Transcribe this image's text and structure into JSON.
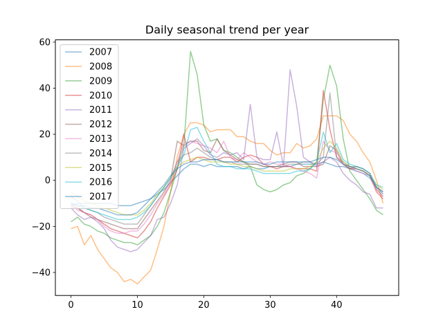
{
  "chart_data": {
    "type": "line",
    "title": "Daily seasonal trend per year",
    "xlabel": "",
    "ylabel": "",
    "xlim": [
      -2.35,
      49.35
    ],
    "ylim": [
      -50,
      61
    ],
    "xticks": [
      0,
      10,
      20,
      30,
      40
    ],
    "yticks": [
      -40,
      -20,
      0,
      20,
      40,
      60
    ],
    "grid": false,
    "legend_position": "top-left",
    "series": [
      {
        "name": "2007",
        "color": "#1f77b4",
        "values": [
          -11,
          -10,
          -10,
          -10,
          -10,
          -10,
          -10,
          -11,
          -11,
          -11,
          -10,
          -9,
          -8,
          -6,
          -4,
          -1,
          2,
          5,
          7,
          7,
          6,
          7,
          6,
          6,
          6,
          6,
          5,
          6,
          5,
          5,
          6,
          6,
          6,
          6,
          7,
          7,
          7,
          7,
          8,
          7,
          6,
          6,
          5,
          4,
          3,
          1,
          -3,
          -6
        ]
      },
      {
        "name": "2008",
        "color": "#ff7f0e",
        "values": [
          -21,
          -20,
          -28,
          -24,
          -30,
          -34,
          -38,
          -40,
          -44,
          -43,
          -45,
          -42,
          -39,
          -30,
          -20,
          -5,
          10,
          20,
          25,
          25,
          24,
          21,
          22,
          22,
          22,
          19,
          19,
          17,
          16,
          16,
          13,
          11,
          12,
          12,
          16,
          14,
          15,
          18,
          28,
          28,
          28,
          26,
          20,
          17,
          12,
          8,
          0,
          -10
        ]
      },
      {
        "name": "2009",
        "color": "#2ca02c",
        "values": [
          -18,
          -16,
          -19,
          -20,
          -22,
          -23,
          -25,
          -26,
          -27,
          -27,
          -28,
          -26,
          -24,
          -20,
          -14,
          -5,
          5,
          15,
          56,
          46,
          24,
          17,
          18,
          13,
          12,
          10,
          8,
          6,
          -2,
          -4,
          -5,
          -4,
          -2,
          -1,
          2,
          3,
          5,
          8,
          35,
          50,
          41,
          18,
          4,
          0,
          -4,
          -8,
          -13,
          -15
        ]
      },
      {
        "name": "2010",
        "color": "#d62728",
        "values": [
          -11,
          -12,
          -14,
          -15,
          -17,
          -19,
          -21,
          -22,
          -23,
          -24,
          -25,
          -22,
          -18,
          -12,
          -7,
          -2,
          5,
          20,
          8,
          10,
          10,
          9,
          9,
          10,
          10,
          8,
          10,
          11,
          10,
          7,
          6,
          5,
          6,
          6,
          5,
          5,
          5,
          4,
          39,
          22,
          10,
          7,
          5,
          5,
          4,
          2,
          -5,
          -8
        ]
      },
      {
        "name": "2011",
        "color": "#9467bd",
        "values": [
          -12,
          -15,
          -17,
          -16,
          -18,
          -21,
          -26,
          -29,
          -30,
          -31,
          -30,
          -27,
          -24,
          -17,
          -16,
          -10,
          -2,
          14,
          16,
          18,
          15,
          11,
          10,
          12,
          11,
          12,
          9,
          33,
          10,
          9,
          9,
          21,
          6,
          48,
          32,
          10,
          8,
          6,
          8,
          10,
          8,
          3,
          0,
          -2,
          -5,
          -6,
          -12,
          -12
        ]
      },
      {
        "name": "2012",
        "color": "#8c564b",
        "values": [
          -12,
          -12,
          -14,
          -16,
          -17,
          -18,
          -19,
          -20,
          -21,
          -21,
          -21,
          -17,
          -13,
          -9,
          -5,
          0,
          17,
          15,
          17,
          17,
          13,
          12,
          18,
          13,
          11,
          9,
          8,
          7,
          7,
          6,
          6,
          6,
          7,
          8,
          8,
          6,
          6,
          6,
          7,
          15,
          13,
          7,
          5,
          6,
          5,
          3,
          -4,
          -7
        ]
      },
      {
        "name": "2013",
        "color": "#e377c2",
        "values": [
          -10,
          -13,
          -14,
          -15,
          -17,
          -20,
          -22,
          -23,
          -23,
          -22,
          -22,
          -19,
          -15,
          -10,
          -6,
          -1,
          8,
          16,
          17,
          16,
          15,
          14,
          12,
          17,
          10,
          9,
          12,
          10,
          8,
          7,
          8,
          7,
          7,
          6,
          5,
          4,
          3,
          1,
          17,
          13,
          12,
          7,
          6,
          4,
          3,
          2,
          -4,
          -7
        ]
      },
      {
        "name": "2014",
        "color": "#7f7f7f",
        "values": [
          -7,
          -9,
          -12,
          -13,
          -14,
          -16,
          -17,
          -18,
          -19,
          -19,
          -19,
          -15,
          -11,
          -7,
          -3,
          1,
          8,
          11,
          12,
          14,
          12,
          10,
          9,
          8,
          8,
          7,
          7,
          7,
          7,
          6,
          6,
          6,
          6,
          7,
          7,
          8,
          8,
          7,
          10,
          38,
          10,
          8,
          6,
          6,
          5,
          3,
          -3,
          -5
        ]
      },
      {
        "name": "2015",
        "color": "#bcbd22",
        "values": [
          -5,
          -7,
          -9,
          -10,
          -11,
          -12,
          -13,
          -14,
          -15,
          -15,
          -15,
          -13,
          -10,
          -6,
          -3,
          1,
          6,
          8,
          9,
          10,
          9,
          8,
          8,
          8,
          7,
          7,
          6,
          6,
          5,
          4,
          4,
          4,
          4,
          5,
          5,
          5,
          6,
          8,
          14,
          17,
          14,
          8,
          6,
          5,
          4,
          2,
          -2,
          -4
        ]
      },
      {
        "name": "2016",
        "color": "#17becf",
        "values": [
          -10,
          -11,
          -12,
          -13,
          -14,
          -15,
          -16,
          -17,
          -17,
          -17,
          -16,
          -14,
          -11,
          -7,
          -3,
          1,
          6,
          11,
          22,
          23,
          17,
          12,
          7,
          6,
          6,
          5,
          5,
          5,
          4,
          3,
          3,
          3,
          3,
          3,
          4,
          4,
          5,
          8,
          21,
          12,
          16,
          9,
          7,
          6,
          5,
          3,
          -2,
          -3
        ]
      },
      {
        "name": "2017",
        "color": "#1f77b4",
        "values": [
          -10,
          -11,
          -11,
          -12,
          -12,
          -13,
          -14,
          -15,
          -15,
          -15,
          -14,
          -11,
          -8,
          -5,
          -2,
          2,
          5,
          7,
          8,
          8,
          9,
          9,
          9,
          8,
          8,
          8,
          8,
          8,
          8,
          7,
          7,
          8,
          8,
          8,
          8,
          8,
          8,
          9,
          10,
          10,
          9,
          7,
          6,
          5,
          4,
          2,
          -3,
          -5
        ]
      }
    ]
  }
}
